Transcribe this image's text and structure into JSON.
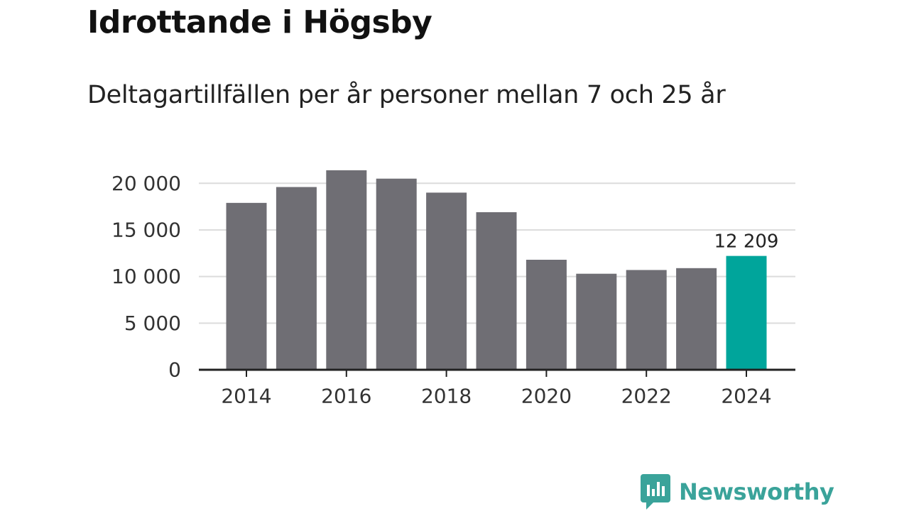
{
  "chart_data": {
    "type": "bar",
    "title": "Idrottande i Högsby",
    "subtitle": "Deltagartillfällen per år personer mellan 7 och 25 år",
    "xlabel": "",
    "ylabel": "",
    "categories": [
      "2014",
      "2015",
      "2016",
      "2017",
      "2018",
      "2019",
      "2020",
      "2021",
      "2022",
      "2023",
      "2024"
    ],
    "values": [
      17900,
      19600,
      21400,
      20500,
      19000,
      16900,
      11800,
      10300,
      10700,
      10900,
      12209
    ],
    "ylim": [
      0,
      22000
    ],
    "yticks": [
      0,
      5000,
      10000,
      15000,
      20000
    ],
    "ytick_labels": [
      "0",
      "5 000",
      "10 000",
      "15 000",
      "20 000"
    ],
    "xtick_labels": [
      "2014",
      "2016",
      "2018",
      "2020",
      "2022",
      "2024"
    ],
    "grid": true,
    "annotations": [
      {
        "category": "2024",
        "text": "12 209"
      }
    ],
    "bar_color": "#6f6e74",
    "highlight_color": "#00a59b",
    "highlight_category": "2024"
  },
  "brand": {
    "name": "Newsworthy",
    "color": "#3aa39a"
  }
}
